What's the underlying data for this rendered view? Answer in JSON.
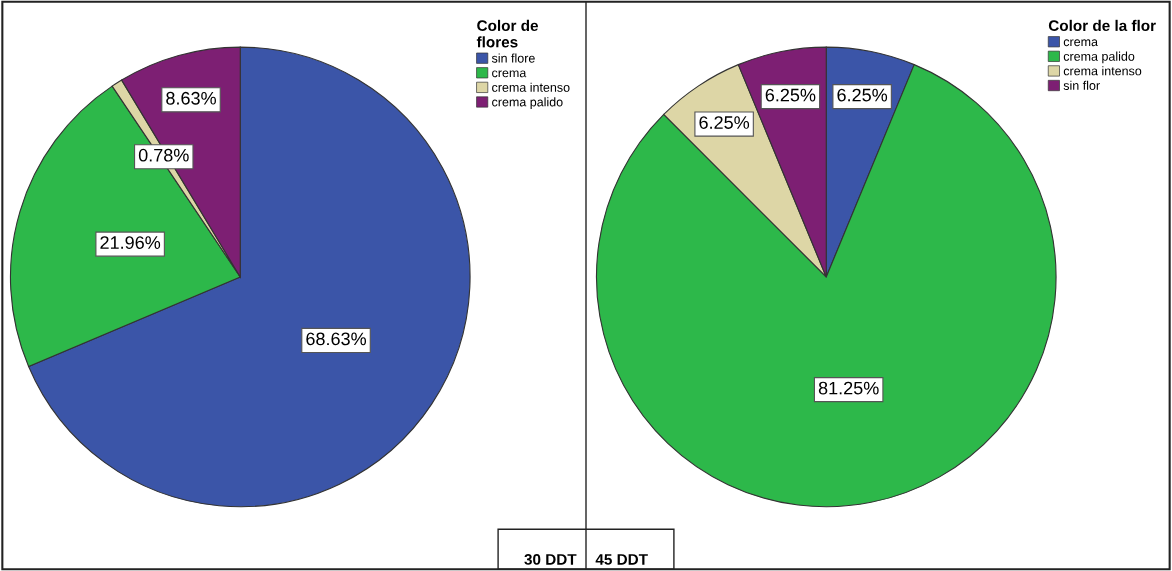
{
  "chart_data": [
    {
      "type": "pie",
      "legend_title": "Color de\nflores",
      "legend": "top right",
      "categories": [
        "sin flore",
        "crema",
        "crema intenso",
        "crema palido"
      ],
      "values": [
        68.63,
        21.96,
        0.78,
        8.63
      ],
      "value_labels": [
        "68.63%",
        "21.96%",
        "0.78%",
        "8.63%"
      ],
      "colors": [
        "#3b55a8",
        "#2db84a",
        "#ddd6a6",
        "#7d1f73"
      ],
      "annotations": [
        "30 DDT"
      ]
    },
    {
      "type": "pie",
      "legend_title": "Color de la flor",
      "legend": "top right",
      "categories": [
        "crema",
        "crema palido",
        "crema intenso",
        "sin flor"
      ],
      "values": [
        6.25,
        81.25,
        6.25,
        6.25
      ],
      "value_labels": [
        "6.25%",
        "81.25%",
        "6.25%",
        "6.25%"
      ],
      "colors": [
        "#3b55a8",
        "#2db84a",
        "#ddd6a6",
        "#7d1f73"
      ],
      "annotations": [
        "45 DDT"
      ]
    }
  ]
}
